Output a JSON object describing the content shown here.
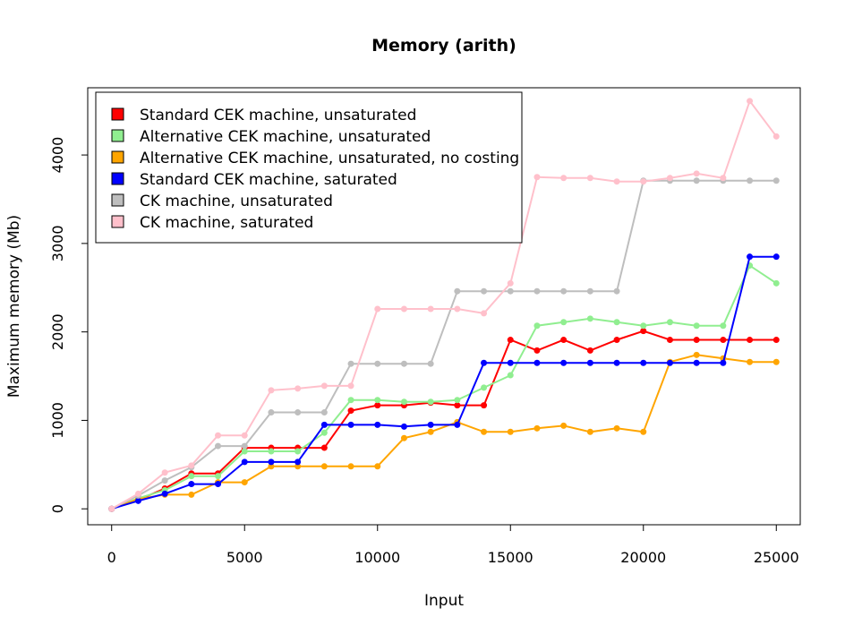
{
  "chart_data": {
    "type": "line",
    "title": "Memory (arith)",
    "xlabel": "Input",
    "ylabel": "Maximum memory (Mb)",
    "xlim": [
      -900,
      25900
    ],
    "ylim": [
      -180,
      4760
    ],
    "xticks": [
      0,
      5000,
      10000,
      15000,
      20000,
      25000
    ],
    "yticks": [
      0,
      1000,
      2000,
      3000,
      4000
    ],
    "grid": false,
    "legend_position": "top-left",
    "x": [
      0,
      1000,
      2000,
      3000,
      4000,
      5000,
      6000,
      7000,
      8000,
      9000,
      10000,
      11000,
      12000,
      13000,
      14000,
      15000,
      16000,
      17000,
      18000,
      19000,
      20000,
      21000,
      22000,
      23000,
      24000,
      25000
    ],
    "series": [
      {
        "name": "Standard CEK machine, unsaturated",
        "color": "#ff0000",
        "values": [
          0,
          100,
          230,
          400,
          400,
          690,
          690,
          690,
          690,
          1110,
          1170,
          1170,
          1200,
          1170,
          1170,
          1910,
          1790,
          1910,
          1790,
          1910,
          2010,
          1910,
          1910,
          1910,
          1910,
          1910
        ]
      },
      {
        "name": "Alternative CEK machine, unsaturated",
        "color": "#90ee90",
        "values": [
          0,
          120,
          210,
          370,
          370,
          650,
          650,
          650,
          860,
          1230,
          1230,
          1210,
          1210,
          1230,
          1370,
          1510,
          2070,
          2110,
          2150,
          2110,
          2070,
          2110,
          2070,
          2070,
          2750,
          2550
        ]
      },
      {
        "name": "Alternative CEK machine, unsaturated, no costing",
        "color": "#ffa500",
        "values": [
          0,
          110,
          160,
          160,
          300,
          300,
          480,
          480,
          480,
          480,
          480,
          800,
          870,
          980,
          870,
          870,
          910,
          940,
          870,
          910,
          870,
          1660,
          1740,
          1700,
          1660,
          1660
        ]
      },
      {
        "name": "Standard CEK machine, saturated",
        "color": "#0000ff",
        "values": [
          0,
          90,
          170,
          280,
          280,
          530,
          530,
          530,
          950,
          950,
          950,
          930,
          950,
          950,
          1650,
          1650,
          1650,
          1650,
          1650,
          1650,
          1650,
          1650,
          1650,
          1650,
          2850,
          2850
        ]
      },
      {
        "name": "CK machine, unsaturated",
        "color": "#bebebe",
        "values": [
          0,
          150,
          320,
          470,
          710,
          710,
          1090,
          1090,
          1090,
          1640,
          1640,
          1640,
          1640,
          2460,
          2460,
          2460,
          2460,
          2460,
          2460,
          2460,
          3710,
          3710,
          3710,
          3710,
          3710,
          3710
        ]
      },
      {
        "name": "CK machine, saturated",
        "color": "#ffc0cb",
        "values": [
          0,
          170,
          410,
          490,
          830,
          830,
          1340,
          1360,
          1390,
          1390,
          2260,
          2260,
          2260,
          2260,
          2210,
          2550,
          3750,
          3740,
          3740,
          3700,
          3700,
          3740,
          3790,
          3740,
          4610,
          4210
        ]
      }
    ]
  }
}
